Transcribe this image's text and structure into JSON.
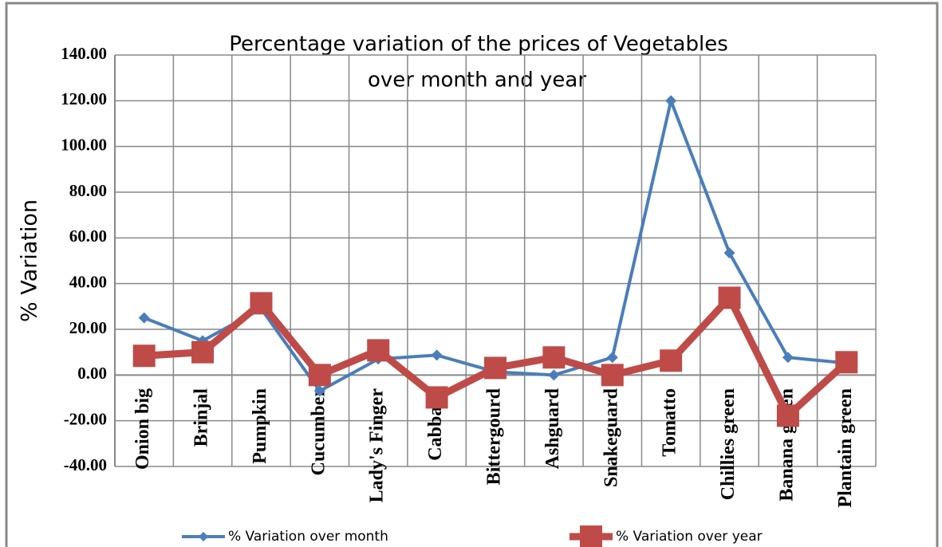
{
  "chart_data": {
    "type": "line",
    "title": [
      "Percentage variation of the prices of Vegetables",
      "over month and year"
    ],
    "y_label": "% Variation",
    "categories": [
      "Onion big",
      "Brinjal",
      "Pumpkin",
      "Cucumber",
      "Lady's Finger",
      "Cabbage",
      "Bittergourd",
      "Ashguard",
      "Snakeguard",
      "Tomatto",
      "Chillies green",
      "Banana green",
      "Plantain green"
    ],
    "series": [
      {
        "name": "%  Variation over month",
        "color": "#4a7ebb",
        "marker": "diamond",
        "values": [
          25,
          15,
          29,
          -7,
          7,
          8.7,
          1.4,
          0,
          7.7,
          120,
          53.4,
          7.7,
          5.2
        ]
      },
      {
        "name": "%  Variation over year",
        "color": "#be4b48",
        "marker": "square",
        "values": [
          8.4,
          10,
          31.4,
          0,
          10.8,
          -9.8,
          3.1,
          7.7,
          0,
          6.3,
          33.8,
          -17.8,
          5.6
        ]
      }
    ],
    "ylim": [
      -40,
      140
    ],
    "yticks": [
      {
        "value": -40,
        "label": "-40.00"
      },
      {
        "value": -20,
        "label": "-20.00"
      },
      {
        "value": 0,
        "label": "0.00"
      },
      {
        "value": 20,
        "label": "20.00"
      },
      {
        "value": 40,
        "label": "40.00"
      },
      {
        "value": 60,
        "label": "60.00"
      },
      {
        "value": 80,
        "label": "80.00"
      },
      {
        "value": 100,
        "label": "100.00"
      },
      {
        "value": 120,
        "label": "120.00"
      },
      {
        "value": 140,
        "label": "140.00"
      }
    ],
    "grid": true,
    "legend": "bottom"
  }
}
